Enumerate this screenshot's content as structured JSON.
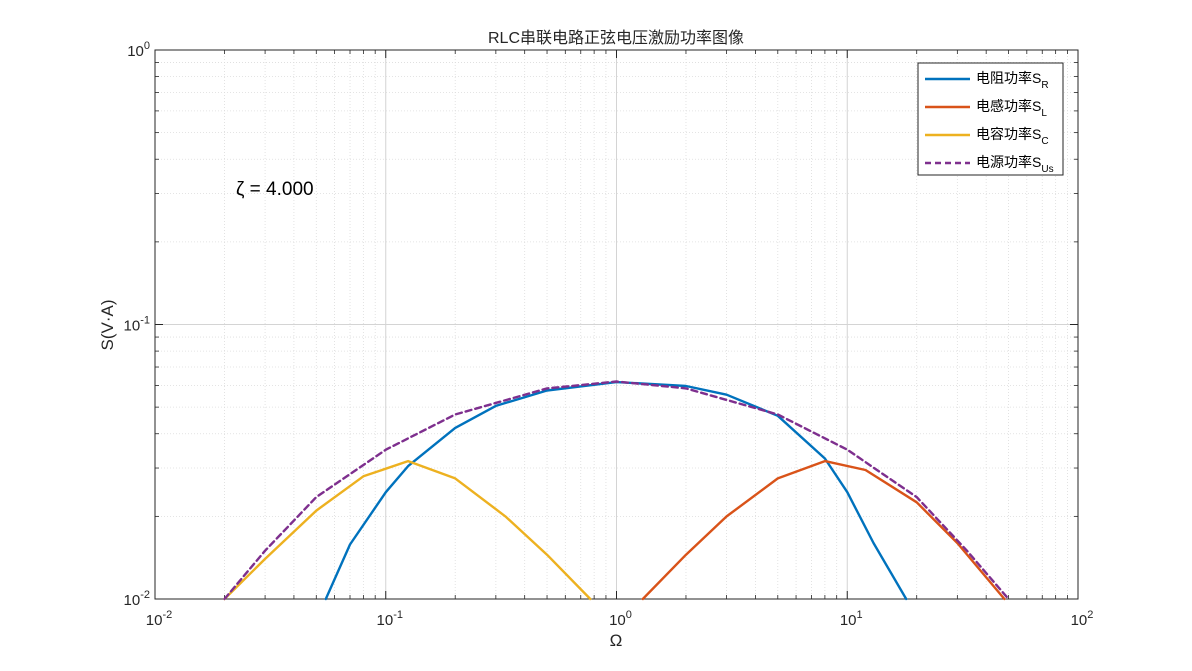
{
  "chart_data": {
    "type": "line",
    "title": "RLC串联电路正弦电压激励功率图像",
    "xlabel": "Ω",
    "ylabel": "S(V·A)",
    "xscale": "log",
    "yscale": "log",
    "xlim": [
      0.01,
      100
    ],
    "ylim": [
      0.01,
      1
    ],
    "x_ticks": [
      {
        "base": "10",
        "exp": "-2"
      },
      {
        "base": "10",
        "exp": "-1"
      },
      {
        "base": "10",
        "exp": "0"
      },
      {
        "base": "10",
        "exp": "1"
      },
      {
        "base": "10",
        "exp": "2"
      }
    ],
    "y_ticks": [
      {
        "base": "10",
        "exp": "-2"
      },
      {
        "base": "10",
        "exp": "-1"
      },
      {
        "base": "10",
        "exp": "0"
      }
    ],
    "grid": true,
    "minor_grid": true,
    "legend_position": "top-right",
    "annotation": "ζ = 4.000",
    "zeta": 4.0,
    "series": [
      {
        "name": "电阻功率",
        "sub": "R",
        "color": "#0072BD",
        "dash": "solid",
        "points": [
          [
            0.055,
            0.01
          ],
          [
            0.07,
            0.0158
          ],
          [
            0.1,
            0.0245
          ],
          [
            0.125,
            0.0305
          ],
          [
            0.2,
            0.042
          ],
          [
            0.3,
            0.0505
          ],
          [
            0.5,
            0.0575
          ],
          [
            1,
            0.0617
          ],
          [
            2,
            0.0597
          ],
          [
            3,
            0.0555
          ],
          [
            5,
            0.0465
          ],
          [
            8,
            0.0325
          ],
          [
            10,
            0.0245
          ],
          [
            13,
            0.016
          ],
          [
            18,
            0.01
          ]
        ]
      },
      {
        "name": "电感功率",
        "sub": "L",
        "color": "#D95319",
        "dash": "solid",
        "points": [
          [
            1.3,
            0.01
          ],
          [
            2,
            0.0145
          ],
          [
            3,
            0.02
          ],
          [
            5,
            0.0275
          ],
          [
            8,
            0.0318
          ],
          [
            12,
            0.0295
          ],
          [
            20,
            0.0225
          ],
          [
            30,
            0.016
          ],
          [
            48,
            0.01
          ]
        ]
      },
      {
        "name": "电容功率",
        "sub": "C",
        "color": "#EDB120",
        "dash": "solid",
        "points": [
          [
            0.02,
            0.01
          ],
          [
            0.03,
            0.014
          ],
          [
            0.05,
            0.021
          ],
          [
            0.08,
            0.028
          ],
          [
            0.125,
            0.0318
          ],
          [
            0.2,
            0.0275
          ],
          [
            0.33,
            0.02
          ],
          [
            0.5,
            0.0145
          ],
          [
            0.77,
            0.01
          ]
        ]
      },
      {
        "name": "电源功率",
        "sub": "Us",
        "color": "#7E2F8E",
        "dash": "dashed",
        "points": [
          [
            0.02,
            0.01
          ],
          [
            0.03,
            0.015
          ],
          [
            0.05,
            0.0235
          ],
          [
            0.1,
            0.035
          ],
          [
            0.2,
            0.047
          ],
          [
            0.5,
            0.0585
          ],
          [
            1,
            0.062
          ],
          [
            2,
            0.0585
          ],
          [
            5,
            0.047
          ],
          [
            10,
            0.035
          ],
          [
            20,
            0.0235
          ],
          [
            33,
            0.015
          ],
          [
            50,
            0.01
          ]
        ]
      }
    ]
  }
}
